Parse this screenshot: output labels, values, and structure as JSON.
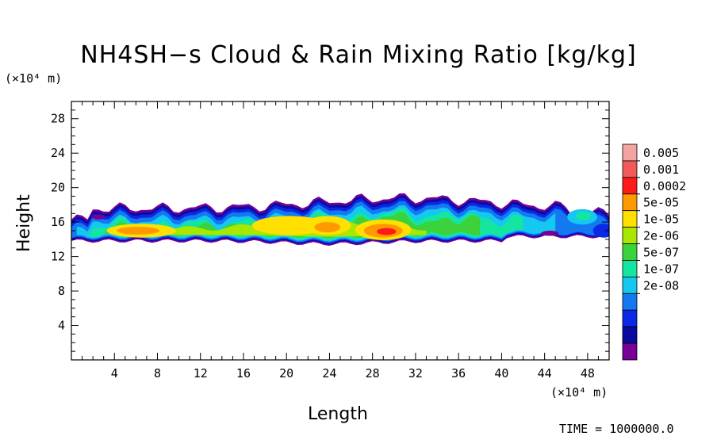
{
  "chart_data": {
    "type": "heatmap",
    "title": "NH4SH−s Cloud & Rain Mixing Ratio [kg/kg]",
    "xlabel": "Length",
    "ylabel": "Height",
    "x_unit": "(×10⁴ m)",
    "y_unit": "(×10⁴ m)",
    "xlim": [
      0,
      50
    ],
    "ylim": [
      0,
      30
    ],
    "x_ticks": [
      "4",
      "8",
      "12",
      "16",
      "20",
      "24",
      "28",
      "32",
      "36",
      "40",
      "44",
      "48"
    ],
    "y_ticks": [
      "4",
      "8",
      "12",
      "16",
      "20",
      "24",
      "28"
    ],
    "colorbar": {
      "levels": [
        "0.005",
        "0.001",
        "0.0002",
        "5e-05",
        "1e-05",
        "2e-06",
        "5e-07",
        "1e-07",
        "2e-08"
      ],
      "colors": [
        "#f4a3a3",
        "#f25a5a",
        "#ff1a1a",
        "#ff9900",
        "#ffe000",
        "#a8e800",
        "#3cd23c",
        "#14e6a0",
        "#14c8f0",
        "#1478f0",
        "#0a28e6",
        "#0a0aa0",
        "#780096"
      ]
    },
    "cloud_layer": {
      "bottom_km_x1e4": 13.5,
      "top_km_x1e4": 19.5,
      "core_height_x1e4": 15,
      "peak_regions": [
        {
          "x": 6.5,
          "y": 15,
          "level": "0.0002"
        },
        {
          "x": 20,
          "y": 15.5,
          "level": "5e-05"
        },
        {
          "x": 24,
          "y": 15.5,
          "level": "0.0002"
        },
        {
          "x": 29,
          "y": 15,
          "level": "0.0002"
        }
      ]
    }
  },
  "timestamp": "TIME = 1000000.0"
}
